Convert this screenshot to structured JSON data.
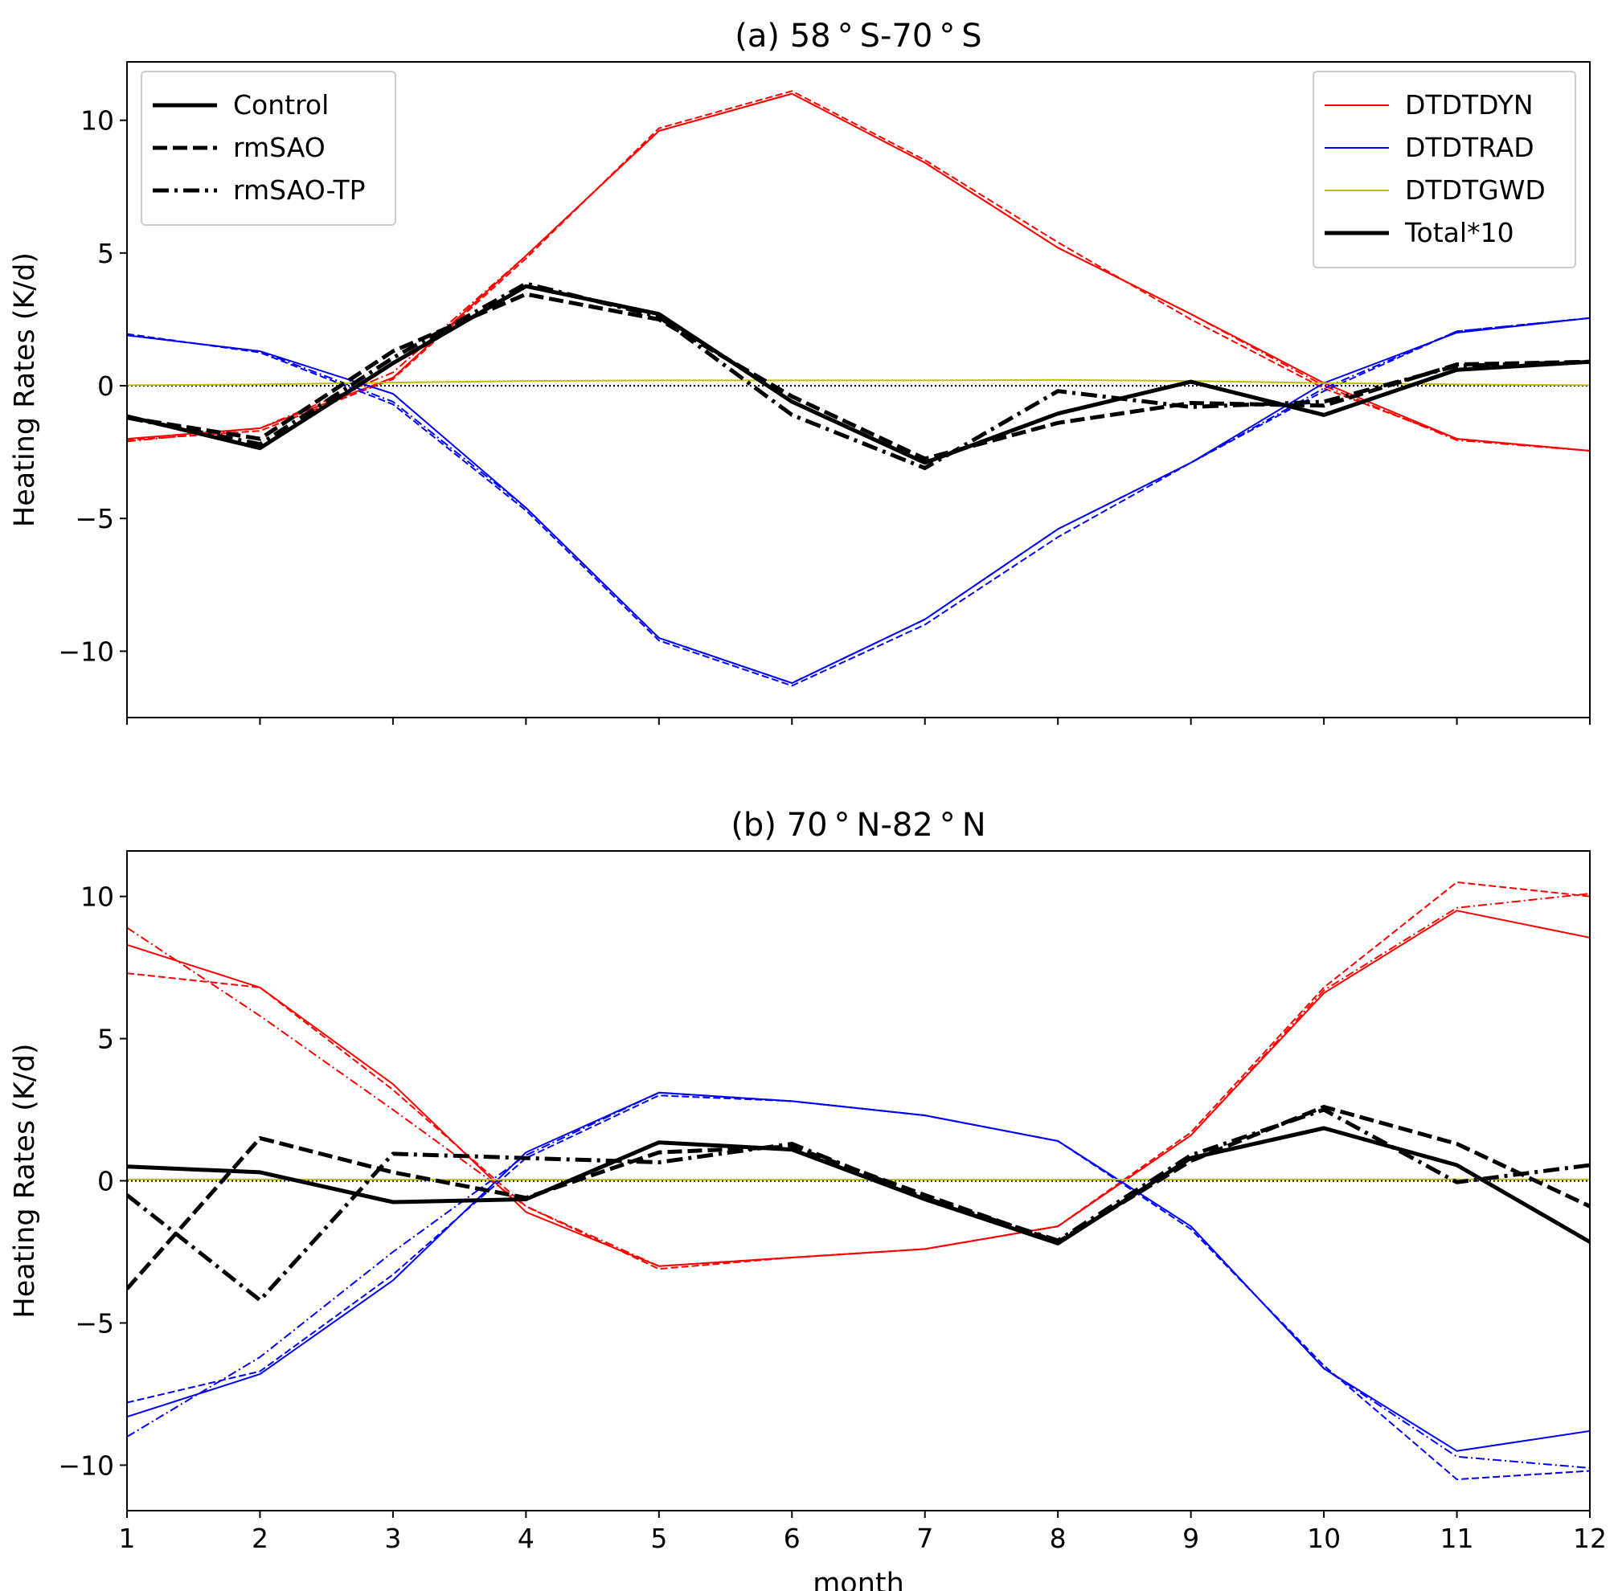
{
  "chart_data": [
    {
      "type": "line",
      "title": "(a) 58$^\\circ$S-70$^\\circ$S",
      "title_display": "(a) 58 ° S-70 ° S",
      "xlabel": "",
      "ylabel": "Heating Rates (K/d)",
      "xlim": [
        1,
        12
      ],
      "ylim": [
        -12.5,
        12.2
      ],
      "x": [
        1,
        2,
        3,
        4,
        5,
        6,
        7,
        8,
        9,
        10,
        11,
        12
      ],
      "xticks": [
        1,
        2,
        3,
        4,
        5,
        6,
        7,
        8,
        9,
        10,
        11,
        12
      ],
      "show_xtick_labels": false,
      "yticks": [
        -10,
        -5,
        0,
        5,
        10
      ],
      "ytick_labels": [
        "−10",
        "−5",
        "0",
        "5",
        "10"
      ],
      "grid": false,
      "zero_line": true,
      "series": [
        {
          "name": "DTDTDYN",
          "experiment": "Control",
          "color": "#ff0000",
          "style": "solid",
          "width": "thin",
          "values": [
            -2.0,
            -1.6,
            0.3,
            4.9,
            9.6,
            11.0,
            8.4,
            5.2,
            2.7,
            0.1,
            -2.0,
            -2.45
          ]
        },
        {
          "name": "DTDTDYN",
          "experiment": "rmSAO",
          "color": "#ff0000",
          "style": "dashed",
          "width": "thin",
          "values": [
            -2.05,
            -1.7,
            0.25,
            4.8,
            9.7,
            11.1,
            8.5,
            5.4,
            2.5,
            -0.1,
            -2.0,
            -2.45
          ]
        },
        {
          "name": "DTDTDYN",
          "experiment": "rmSAO-TP",
          "color": "#ff0000",
          "style": "dashdot",
          "width": "thin",
          "values": [
            -2.1,
            -1.6,
            0.5,
            4.9,
            9.6,
            11.0,
            8.4,
            5.2,
            2.7,
            0.0,
            -2.05,
            -2.45
          ]
        },
        {
          "name": "DTDTRAD",
          "experiment": "Control",
          "color": "#0000ff",
          "style": "solid",
          "width": "thin",
          "values": [
            1.9,
            1.3,
            -0.3,
            -4.6,
            -9.5,
            -11.2,
            -8.8,
            -5.4,
            -2.9,
            0.1,
            2.0,
            2.55
          ]
        },
        {
          "name": "DTDTRAD",
          "experiment": "rmSAO",
          "color": "#0000ff",
          "style": "dashed",
          "width": "thin",
          "values": [
            1.95,
            1.25,
            -0.7,
            -4.7,
            -9.6,
            -11.3,
            -9.0,
            -5.7,
            -2.9,
            -0.2,
            2.05,
            2.55
          ]
        },
        {
          "name": "DTDTRAD",
          "experiment": "rmSAO-TP",
          "color": "#0000ff",
          "style": "dashdot",
          "width": "thin",
          "values": [
            1.9,
            1.3,
            -0.6,
            -4.6,
            -9.5,
            -11.2,
            -8.8,
            -5.4,
            -2.9,
            -0.1,
            2.05,
            2.55
          ]
        },
        {
          "name": "DTDTGWD",
          "experiment": "Control",
          "color": "#bfbf00",
          "style": "solid",
          "width": "thin",
          "values": [
            0.02,
            0.05,
            0.12,
            0.18,
            0.2,
            0.2,
            0.2,
            0.22,
            0.18,
            0.1,
            0.05,
            0.02
          ]
        },
        {
          "name": "Total*10",
          "experiment": "Control",
          "color": "#000000",
          "style": "solid",
          "width": "thick",
          "values": [
            -1.15,
            -2.35,
            0.85,
            3.75,
            2.7,
            -0.6,
            -2.9,
            -1.05,
            0.15,
            -1.1,
            0.6,
            0.9
          ]
        },
        {
          "name": "Total*10",
          "experiment": "rmSAO",
          "color": "#000000",
          "style": "dashed",
          "width": "thick",
          "values": [
            -1.2,
            -2.0,
            1.3,
            3.45,
            2.5,
            -0.4,
            -2.75,
            -1.4,
            -0.65,
            -0.75,
            0.8,
            0.9
          ]
        },
        {
          "name": "Total*10",
          "experiment": "rmSAO-TP",
          "color": "#000000",
          "style": "dashdot",
          "width": "thick",
          "values": [
            -1.2,
            -2.2,
            1.05,
            3.85,
            2.6,
            -1.1,
            -3.1,
            -0.2,
            -0.8,
            -0.6,
            0.75,
            0.9
          ]
        }
      ],
      "legends": [
        {
          "position": "upper-left",
          "entries": [
            {
              "label": "Control",
              "style": "solid",
              "color": "#000000"
            },
            {
              "label": "rmSAO",
              "style": "dashed",
              "color": "#000000"
            },
            {
              "label": "rmSAO-TP",
              "style": "dashdot",
              "color": "#000000"
            }
          ]
        },
        {
          "position": "upper-right",
          "entries": [
            {
              "label": "DTDTDYN",
              "style": "solid",
              "color": "#ff0000",
              "thin": true
            },
            {
              "label": "DTDTRAD",
              "style": "solid",
              "color": "#0000ff",
              "thin": true
            },
            {
              "label": "DTDTGWD",
              "style": "solid",
              "color": "#bfbf00",
              "thin": true
            },
            {
              "label": "Total*10",
              "style": "solid",
              "color": "#000000",
              "thin": false
            }
          ]
        }
      ]
    },
    {
      "type": "line",
      "title": "(b) 70$^\\circ$N-82$^\\circ$N",
      "title_display": "(b) 70 ° N-82 ° N",
      "xlabel": "month",
      "ylabel": "Heating Rates (K/d)",
      "xlim": [
        1,
        12
      ],
      "ylim": [
        -11.6,
        11.6
      ],
      "x": [
        1,
        2,
        3,
        4,
        5,
        6,
        7,
        8,
        9,
        10,
        11,
        12
      ],
      "xticks": [
        1,
        2,
        3,
        4,
        5,
        6,
        7,
        8,
        9,
        10,
        11,
        12
      ],
      "show_xtick_labels": true,
      "yticks": [
        -10,
        -5,
        0,
        5,
        10
      ],
      "ytick_labels": [
        "−10",
        "−5",
        "0",
        "5",
        "10"
      ],
      "grid": false,
      "zero_line": true,
      "series": [
        {
          "name": "DTDTDYN",
          "experiment": "Control",
          "color": "#ff0000",
          "style": "solid",
          "width": "thin",
          "values": [
            8.3,
            6.8,
            3.4,
            -1.1,
            -3.0,
            -2.7,
            -2.4,
            -1.6,
            1.6,
            6.6,
            9.5,
            8.55
          ]
        },
        {
          "name": "DTDTDYN",
          "experiment": "rmSAO",
          "color": "#ff0000",
          "style": "dashed",
          "width": "thin",
          "values": [
            7.3,
            6.8,
            3.2,
            -0.9,
            -3.1,
            -2.7,
            -2.4,
            -1.6,
            1.7,
            6.8,
            10.5,
            10.0
          ]
        },
        {
          "name": "DTDTDYN",
          "experiment": "rmSAO-TP",
          "color": "#ff0000",
          "style": "dashdot",
          "width": "thin",
          "values": [
            8.9,
            5.8,
            2.5,
            -0.9,
            -3.0,
            -2.7,
            -2.4,
            -1.6,
            1.6,
            6.7,
            9.6,
            10.1
          ]
        },
        {
          "name": "DTDTRAD",
          "experiment": "Control",
          "color": "#0000ff",
          "style": "solid",
          "width": "thin",
          "values": [
            -8.3,
            -6.8,
            -3.5,
            1.0,
            3.1,
            2.8,
            2.3,
            1.4,
            -1.6,
            -6.6,
            -9.5,
            -8.8
          ]
        },
        {
          "name": "DTDTRAD",
          "experiment": "rmSAO",
          "color": "#0000ff",
          "style": "dashed",
          "width": "thin",
          "values": [
            -7.8,
            -6.7,
            -3.3,
            0.8,
            3.0,
            2.8,
            2.3,
            1.4,
            -1.7,
            -6.5,
            -10.5,
            -10.2
          ]
        },
        {
          "name": "DTDTRAD",
          "experiment": "rmSAO-TP",
          "color": "#0000ff",
          "style": "dashdot",
          "width": "thin",
          "values": [
            -9.0,
            -6.2,
            -2.5,
            0.9,
            3.1,
            2.8,
            2.3,
            1.4,
            -1.6,
            -6.6,
            -9.7,
            -10.1
          ]
        },
        {
          "name": "DTDTGWD",
          "experiment": "Control",
          "color": "#bfbf00",
          "style": "solid",
          "width": "thin",
          "values": [
            0.05,
            0.05,
            0.04,
            0.04,
            0.04,
            0.04,
            0.04,
            0.04,
            0.05,
            0.05,
            0.05,
            0.05
          ]
        },
        {
          "name": "Total*10",
          "experiment": "Control",
          "color": "#000000",
          "style": "solid",
          "width": "thick",
          "values": [
            0.5,
            0.3,
            -0.75,
            -0.65,
            1.35,
            1.1,
            -0.65,
            -2.2,
            0.8,
            1.85,
            0.55,
            -2.15
          ]
        },
        {
          "name": "Total*10",
          "experiment": "rmSAO",
          "color": "#000000",
          "style": "dashed",
          "width": "thick",
          "values": [
            -3.8,
            1.5,
            0.3,
            -0.6,
            1.0,
            1.2,
            -0.5,
            -2.15,
            0.7,
            2.6,
            1.3,
            -0.9
          ]
        },
        {
          "name": "Total*10",
          "experiment": "rmSAO-TP",
          "color": "#000000",
          "style": "dashdot",
          "width": "thick",
          "values": [
            -0.5,
            -4.2,
            0.95,
            0.8,
            0.65,
            1.3,
            -0.6,
            -2.1,
            0.9,
            2.5,
            -0.05,
            0.55
          ]
        }
      ]
    }
  ]
}
